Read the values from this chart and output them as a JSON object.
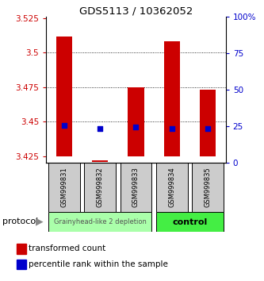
{
  "title": "GDS5113 / 10362052",
  "samples": [
    "GSM999831",
    "GSM999832",
    "GSM999833",
    "GSM999834",
    "GSM999835"
  ],
  "red_top": [
    3.512,
    3.422,
    3.475,
    3.508,
    3.473
  ],
  "red_bottom": [
    3.425,
    3.421,
    3.425,
    3.425,
    3.425
  ],
  "blue_y": [
    3.447,
    3.445,
    3.446,
    3.445,
    3.445
  ],
  "ylim": [
    3.42,
    3.526
  ],
  "yticks": [
    3.425,
    3.45,
    3.475,
    3.5,
    3.525
  ],
  "y2ticks": [
    0,
    25,
    50,
    75,
    100
  ],
  "y2tick_labels": [
    "0",
    "25",
    "50",
    "75",
    "100%"
  ],
  "left_color": "#cc0000",
  "right_color": "#0000cc",
  "bar_color": "#cc0000",
  "dot_color": "#0000cc",
  "group1_label": "Grainyhead-like 2 depletion",
  "group2_label": "control",
  "group1_color": "#aaffaa",
  "group2_color": "#44ee44",
  "group1_indices": [
    0,
    1,
    2
  ],
  "group2_indices": [
    3,
    4
  ],
  "protocol_label": "protocol",
  "legend_red": "transformed count",
  "legend_blue": "percentile rank within the sample",
  "bg_color": "#ffffff"
}
